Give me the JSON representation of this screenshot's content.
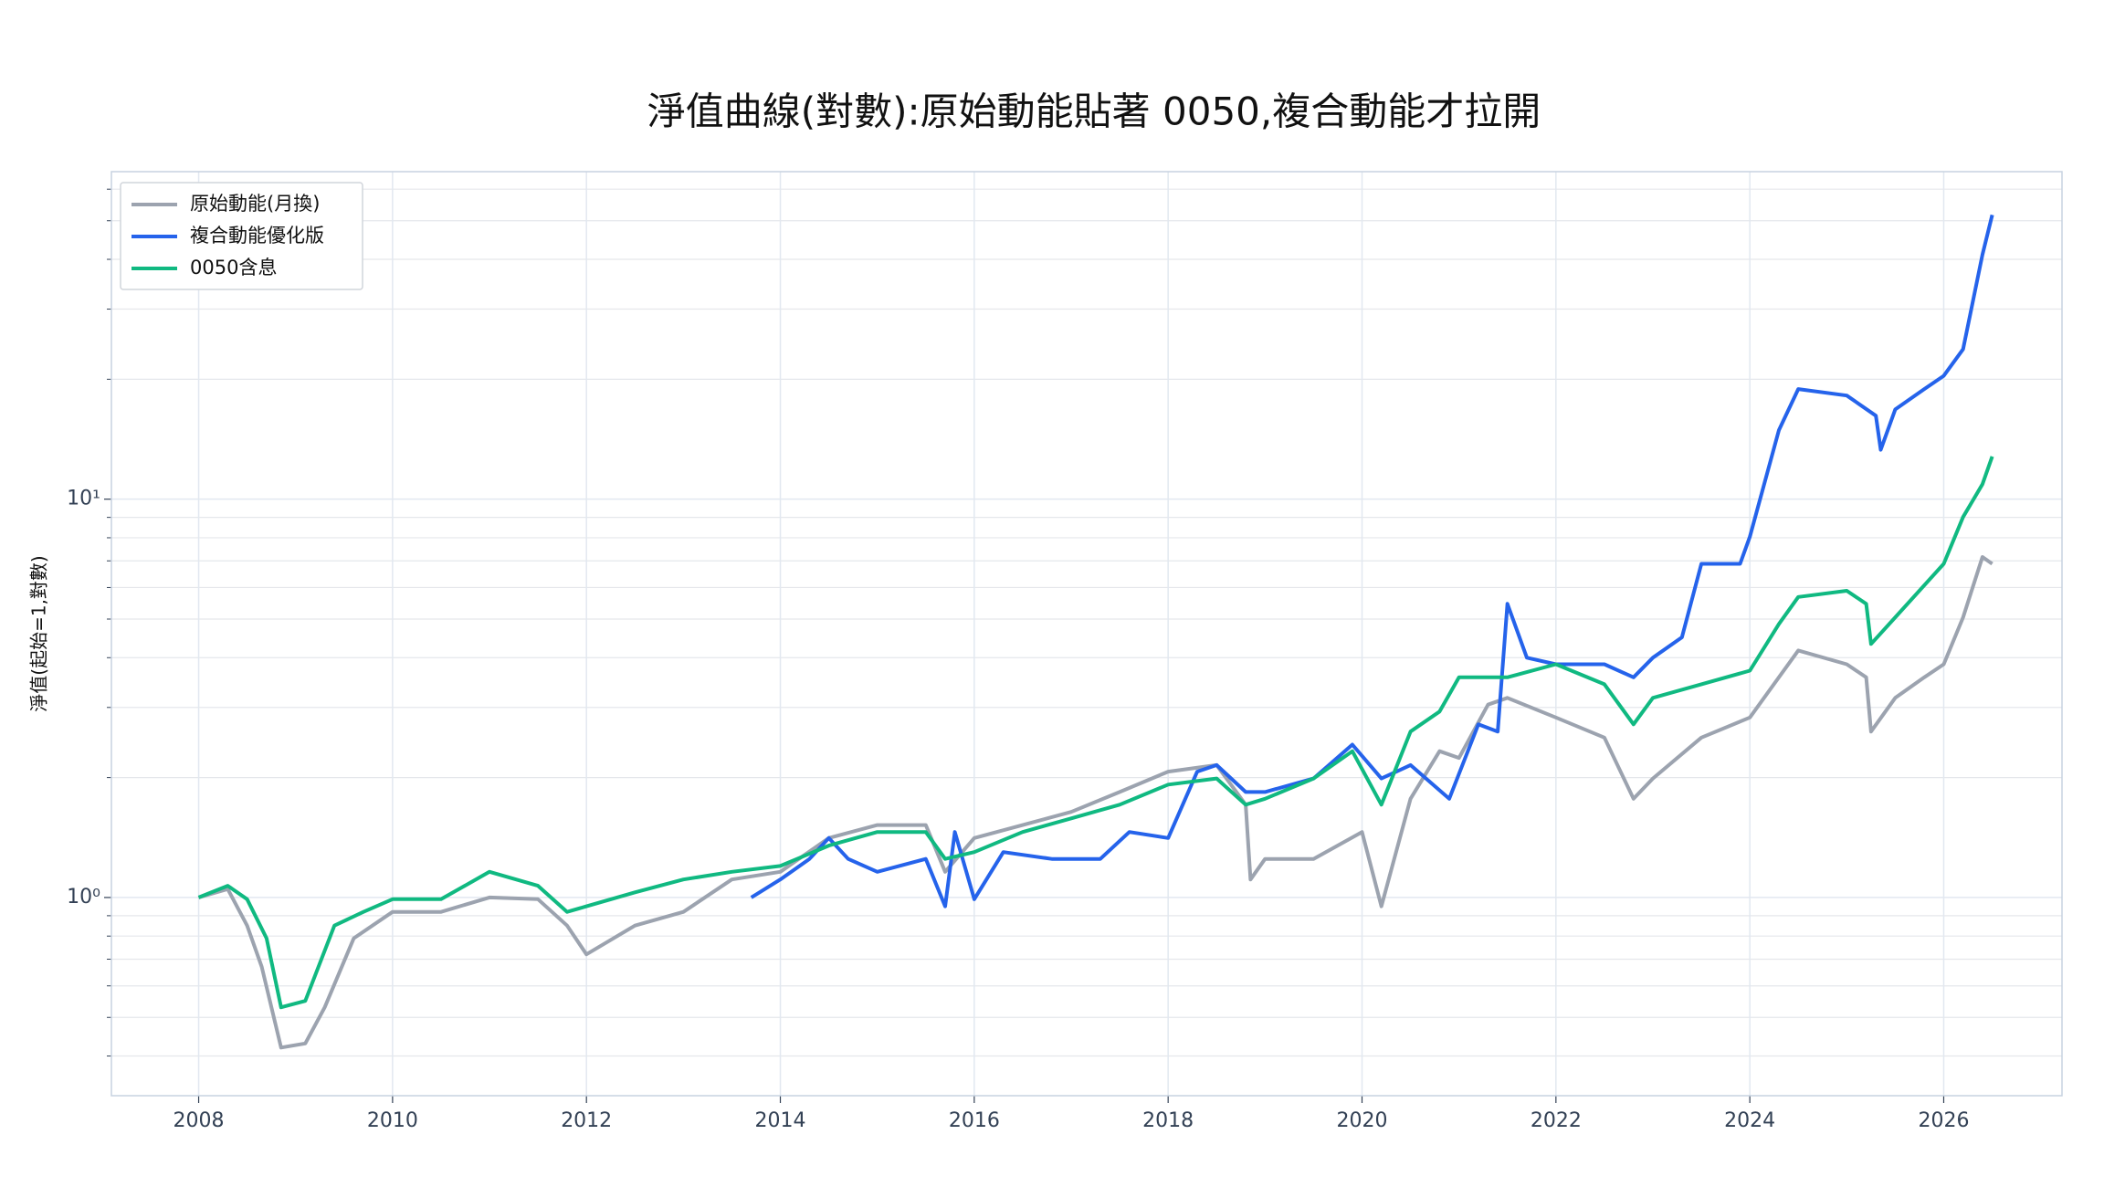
{
  "chart_data": {
    "type": "line",
    "title": "淨值曲線(對數):原始動能貼著 0050,複合動能才拉開",
    "y_label": "淨值(起始=1,對數)",
    "log_y": true,
    "grid": true,
    "legend": "upper left",
    "xlim": [
      2007.1,
      2027.22
    ],
    "xticks": [
      2008,
      2010,
      2012,
      2014,
      2016,
      2018,
      2020,
      2022,
      2024,
      2026
    ],
    "ylim": [
      0.318,
      66.4
    ],
    "yticks": [
      {
        "value": 1,
        "label": "10⁰"
      },
      {
        "value": 10,
        "label": "10¹"
      }
    ],
    "yticks_minor": [
      0.4,
      0.5,
      0.6,
      0.7,
      0.8,
      0.9,
      2,
      3,
      4,
      5,
      6,
      7,
      8,
      9,
      20,
      30,
      40,
      50,
      60
    ],
    "series": [
      {
        "name": "原始動能(月換)",
        "color": "#9ca3af",
        "x": [
          2008.0,
          2008.3,
          2008.5,
          2008.65,
          2008.85,
          2009.1,
          2009.3,
          2009.6,
          2010.0,
          2010.5,
          2011.0,
          2011.5,
          2011.8,
          2012.0,
          2012.5,
          2013.0,
          2013.5,
          2014.0,
          2014.5,
          2015.0,
          2015.5,
          2015.7,
          2016.0,
          2016.5,
          2017.0,
          2017.5,
          2018.0,
          2018.5,
          2018.8,
          2018.85,
          2019.0,
          2019.5,
          2020.0,
          2020.2,
          2020.5,
          2020.8,
          2021.0,
          2021.3,
          2021.5,
          2022.0,
          2022.5,
          2022.8,
          2023.0,
          2023.5,
          2024.0,
          2024.5,
          2025.0,
          2025.2,
          2025.25,
          2025.5,
          2025.8,
          2026.0,
          2026.2,
          2026.4,
          2026.5
        ],
        "values": [
          1.0,
          1.05,
          0.85,
          0.67,
          0.42,
          0.43,
          0.53,
          0.79,
          0.92,
          0.92,
          1.0,
          0.99,
          0.85,
          0.72,
          0.85,
          0.92,
          1.11,
          1.16,
          1.41,
          1.52,
          1.52,
          1.16,
          1.41,
          1.52,
          1.64,
          1.84,
          2.07,
          2.15,
          1.71,
          1.11,
          1.25,
          1.25,
          1.46,
          0.95,
          1.77,
          2.33,
          2.24,
          3.05,
          3.17,
          2.83,
          2.52,
          1.77,
          1.99,
          2.52,
          2.83,
          4.17,
          3.85,
          3.57,
          2.61,
          3.17,
          3.57,
          3.85,
          5.05,
          7.16,
          6.88
        ]
      },
      {
        "name": "複合動能優化版",
        "color": "#2563eb",
        "x": [
          2013.7,
          2014.0,
          2014.3,
          2014.5,
          2014.7,
          2015.0,
          2015.5,
          2015.7,
          2015.8,
          2016.0,
          2016.3,
          2016.8,
          2017.3,
          2017.6,
          2018.0,
          2018.3,
          2018.5,
          2018.8,
          2019.0,
          2019.5,
          2019.9,
          2020.2,
          2020.5,
          2020.9,
          2021.2,
          2021.4,
          2021.5,
          2021.7,
          2022.0,
          2022.5,
          2022.8,
          2023.0,
          2023.3,
          2023.5,
          2023.9,
          2024.0,
          2024.3,
          2024.5,
          2025.0,
          2025.3,
          2025.35,
          2025.5,
          2025.8,
          2026.0,
          2026.2,
          2026.4,
          2026.5
        ],
        "values": [
          1.0,
          1.11,
          1.25,
          1.41,
          1.25,
          1.16,
          1.25,
          0.95,
          1.46,
          0.99,
          1.3,
          1.25,
          1.25,
          1.46,
          1.41,
          2.07,
          2.15,
          1.84,
          1.84,
          1.99,
          2.42,
          1.99,
          2.15,
          1.77,
          2.72,
          2.61,
          5.46,
          4.0,
          3.85,
          3.85,
          3.57,
          4.0,
          4.5,
          6.88,
          6.88,
          8.05,
          14.9,
          18.9,
          18.2,
          16.2,
          13.3,
          16.8,
          18.9,
          20.4,
          23.8,
          41.1,
          51.7
        ]
      },
      {
        "name": "0050含息",
        "color": "#10b981",
        "x": [
          2008.0,
          2008.3,
          2008.5,
          2008.7,
          2008.85,
          2009.1,
          2009.4,
          2009.7,
          2010.0,
          2010.5,
          2011.0,
          2011.5,
          2011.8,
          2012.0,
          2012.5,
          2013.0,
          2013.5,
          2014.0,
          2014.5,
          2015.0,
          2015.5,
          2015.7,
          2016.0,
          2016.5,
          2017.0,
          2017.5,
          2018.0,
          2018.5,
          2018.8,
          2019.0,
          2019.5,
          2019.9,
          2020.2,
          2020.5,
          2020.8,
          2021.0,
          2021.5,
          2022.0,
          2022.5,
          2022.8,
          2023.0,
          2023.5,
          2024.0,
          2024.3,
          2024.5,
          2025.0,
          2025.2,
          2025.25,
          2025.5,
          2026.0,
          2026.2,
          2026.4,
          2026.5
        ],
        "values": [
          1.0,
          1.07,
          0.99,
          0.79,
          0.53,
          0.55,
          0.85,
          0.92,
          0.99,
          0.99,
          1.16,
          1.07,
          0.92,
          0.95,
          1.03,
          1.11,
          1.16,
          1.2,
          1.35,
          1.46,
          1.46,
          1.25,
          1.3,
          1.46,
          1.58,
          1.71,
          1.92,
          1.99,
          1.71,
          1.77,
          1.99,
          2.33,
          1.71,
          2.61,
          2.93,
          3.57,
          3.57,
          3.85,
          3.43,
          2.72,
          3.17,
          3.43,
          3.71,
          4.86,
          5.68,
          5.89,
          5.46,
          4.33,
          5.05,
          6.88,
          9.02,
          10.9,
          12.8
        ]
      }
    ]
  }
}
